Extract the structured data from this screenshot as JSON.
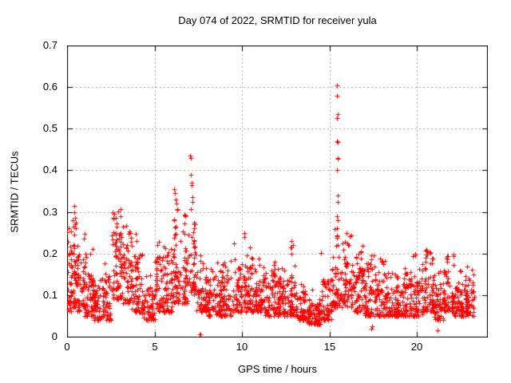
{
  "chart_data": {
    "type": "scatter",
    "title": "Day 074 of 2022, SRMTID for receiver yula",
    "xlabel": "GPS time / hours",
    "ylabel": "SRMTID / TECUs",
    "xlim": [
      0,
      24
    ],
    "ylim": [
      0,
      0.7
    ],
    "xtick_values": [
      0,
      5,
      10,
      15,
      20
    ],
    "xtick_labels": [
      "0",
      "5",
      "10",
      "15",
      "20"
    ],
    "ytick_values": [
      0,
      0.1,
      0.2,
      0.3,
      0.4,
      0.5,
      0.6,
      0.7
    ],
    "ytick_labels": [
      "0",
      "0.1",
      "0.2",
      "0.3",
      "0.4",
      "0.5",
      "0.6",
      "0.7"
    ],
    "grid": true,
    "legend": "none",
    "marker": "plus",
    "marker_size_px": 7,
    "marker_color": "#ff0000",
    "background": "#ffffff",
    "axis_color": "#000000",
    "grid_color": "#a8a8a8",
    "seed": 74,
    "note": "dense 30s-epoch scatter approximated by density bands [x_start,x_end,y_low,y_high,y_tail_max,count] plus explicit outlier spike points",
    "density_bands": [
      [
        0.0,
        0.3,
        0.06,
        0.22,
        0.27,
        40
      ],
      [
        0.3,
        0.6,
        0.07,
        0.22,
        0.3,
        40
      ],
      [
        0.6,
        1.0,
        0.06,
        0.2,
        0.25,
        50
      ],
      [
        1.0,
        1.5,
        0.05,
        0.17,
        0.23,
        55
      ],
      [
        1.5,
        2.0,
        0.04,
        0.14,
        0.18,
        55
      ],
      [
        2.0,
        2.5,
        0.04,
        0.15,
        0.19,
        55
      ],
      [
        2.5,
        3.2,
        0.09,
        0.29,
        0.315,
        75
      ],
      [
        3.2,
        3.7,
        0.08,
        0.24,
        0.27,
        55
      ],
      [
        3.7,
        4.3,
        0.06,
        0.2,
        0.25,
        60
      ],
      [
        4.3,
        5.0,
        0.04,
        0.12,
        0.16,
        65
      ],
      [
        5.0,
        5.6,
        0.06,
        0.2,
        0.23,
        60
      ],
      [
        5.6,
        6.0,
        0.06,
        0.19,
        0.22,
        45
      ],
      [
        6.0,
        6.5,
        0.08,
        0.28,
        0.36,
        55
      ],
      [
        6.5,
        7.0,
        0.08,
        0.24,
        0.3,
        50
      ],
      [
        7.0,
        7.4,
        0.1,
        0.3,
        0.43,
        45
      ],
      [
        7.4,
        8.0,
        0.06,
        0.17,
        0.2,
        55
      ],
      [
        8.0,
        8.7,
        0.05,
        0.15,
        0.18,
        70
      ],
      [
        8.7,
        9.5,
        0.05,
        0.16,
        0.19,
        80
      ],
      [
        9.5,
        10.0,
        0.06,
        0.17,
        0.2,
        50
      ],
      [
        10.0,
        10.6,
        0.06,
        0.18,
        0.25,
        60
      ],
      [
        10.6,
        11.2,
        0.06,
        0.16,
        0.22,
        60
      ],
      [
        11.2,
        11.9,
        0.05,
        0.15,
        0.18,
        70
      ],
      [
        11.9,
        12.6,
        0.05,
        0.14,
        0.17,
        70
      ],
      [
        12.6,
        13.1,
        0.05,
        0.15,
        0.23,
        50
      ],
      [
        13.1,
        13.7,
        0.04,
        0.11,
        0.14,
        60
      ],
      [
        13.7,
        14.5,
        0.03,
        0.09,
        0.12,
        80
      ],
      [
        14.5,
        15.1,
        0.04,
        0.14,
        0.22,
        60
      ],
      [
        15.1,
        15.7,
        0.07,
        0.2,
        0.26,
        60
      ],
      [
        15.7,
        16.3,
        0.07,
        0.2,
        0.25,
        60
      ],
      [
        16.3,
        17.0,
        0.06,
        0.17,
        0.22,
        70
      ],
      [
        17.0,
        17.6,
        0.05,
        0.17,
        0.2,
        60
      ],
      [
        17.6,
        18.3,
        0.05,
        0.15,
        0.19,
        70
      ],
      [
        18.3,
        19.0,
        0.05,
        0.13,
        0.16,
        70
      ],
      [
        19.0,
        19.7,
        0.05,
        0.14,
        0.17,
        70
      ],
      [
        19.7,
        20.3,
        0.05,
        0.16,
        0.2,
        60
      ],
      [
        20.3,
        21.0,
        0.06,
        0.18,
        0.21,
        70
      ],
      [
        21.0,
        21.5,
        0.04,
        0.13,
        0.16,
        50
      ],
      [
        21.5,
        22.1,
        0.06,
        0.17,
        0.2,
        60
      ],
      [
        22.1,
        22.7,
        0.05,
        0.14,
        0.17,
        60
      ],
      [
        22.7,
        23.3,
        0.05,
        0.15,
        0.17,
        60
      ]
    ],
    "outlier_points": [
      [
        0.38,
        0.265
      ],
      [
        0.4,
        0.315
      ],
      [
        0.42,
        0.3
      ],
      [
        0.44,
        0.285
      ],
      [
        0.46,
        0.27
      ],
      [
        0.5,
        0.26
      ],
      [
        0.52,
        0.275
      ],
      [
        2.62,
        0.3
      ],
      [
        2.66,
        0.285
      ],
      [
        6.12,
        0.355
      ],
      [
        6.18,
        0.345
      ],
      [
        6.2,
        0.33
      ],
      [
        6.25,
        0.32
      ],
      [
        6.3,
        0.305
      ],
      [
        7.02,
        0.435
      ],
      [
        7.05,
        0.43
      ],
      [
        7.08,
        0.39
      ],
      [
        7.1,
        0.37
      ],
      [
        7.12,
        0.365
      ],
      [
        7.15,
        0.335
      ],
      [
        7.18,
        0.325
      ],
      [
        7.58,
        0.005
      ],
      [
        7.62,
        0.005
      ],
      [
        9.52,
        0.225
      ],
      [
        10.12,
        0.25
      ],
      [
        10.15,
        0.24
      ],
      [
        12.8,
        0.23
      ],
      [
        12.82,
        0.215
      ],
      [
        12.84,
        0.2
      ],
      [
        15.42,
        0.605
      ],
      [
        15.43,
        0.58
      ],
      [
        15.45,
        0.535
      ],
      [
        15.44,
        0.525
      ],
      [
        15.4,
        0.47
      ],
      [
        15.46,
        0.468
      ],
      [
        15.45,
        0.43
      ],
      [
        15.47,
        0.428
      ],
      [
        15.43,
        0.4
      ],
      [
        15.46,
        0.34
      ],
      [
        15.48,
        0.325
      ],
      [
        15.42,
        0.29
      ],
      [
        15.47,
        0.28
      ],
      [
        15.41,
        0.26
      ],
      [
        15.44,
        0.238
      ],
      [
        15.49,
        0.22
      ],
      [
        16.0,
        0.225
      ],
      [
        16.05,
        0.22
      ],
      [
        17.4,
        0.02
      ],
      [
        17.45,
        0.025
      ],
      [
        20.55,
        0.21
      ],
      [
        20.6,
        0.205
      ],
      [
        21.15,
        0.015
      ]
    ]
  }
}
